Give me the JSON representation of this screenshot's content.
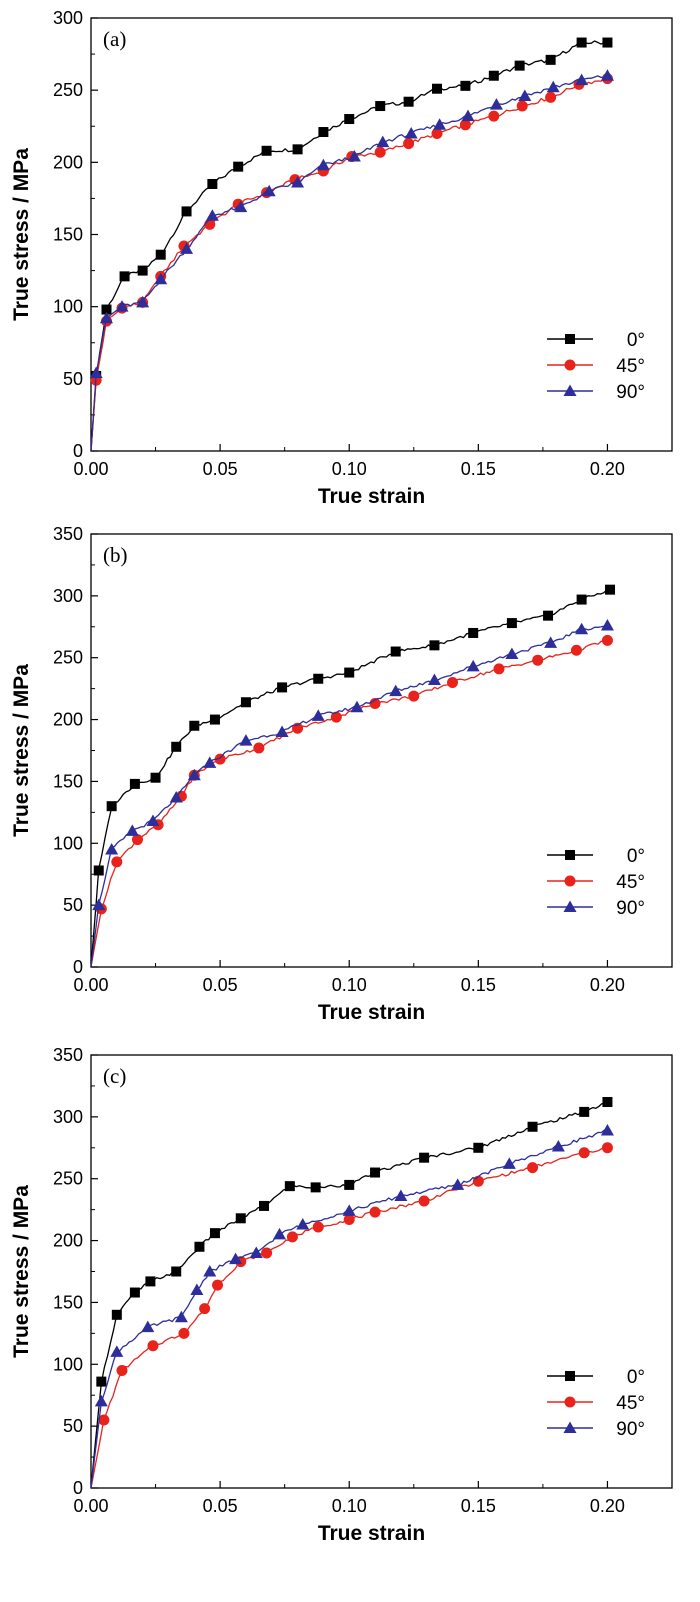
{
  "colors": {
    "series_0": "#000000",
    "series_45": "#e8231b",
    "series_90": "#2e2e9a"
  },
  "chart_data": [
    {
      "type": "line",
      "panel_label": "(a)",
      "xlabel": "True strain",
      "ylabel": "True stress / MPa",
      "xlim": [
        0,
        0.225
      ],
      "ylim": [
        0,
        300
      ],
      "xticks": [
        "0.00",
        "0.05",
        "0.10",
        "0.15",
        "0.20"
      ],
      "xtick_values": [
        0,
        0.05,
        0.1,
        0.15,
        0.2
      ],
      "yticks": [
        "0",
        "50",
        "100",
        "150",
        "200",
        "250",
        "300"
      ],
      "ytick_values": [
        0,
        50,
        100,
        150,
        200,
        250,
        300
      ],
      "legend_position": "bottom-right",
      "grid": false,
      "series": [
        {
          "name": "0°",
          "marker": "square",
          "color": "#000000",
          "x": [
            0,
            0.002,
            0.006,
            0.013,
            0.02,
            0.027,
            0.037,
            0.047,
            0.057,
            0.068,
            0.08,
            0.09,
            0.1,
            0.112,
            0.123,
            0.134,
            0.145,
            0.156,
            0.166,
            0.178,
            0.19,
            0.2
          ],
          "y": [
            0,
            52,
            98,
            121,
            125,
            136,
            166,
            185,
            197,
            208,
            209,
            221,
            230,
            239,
            242,
            251,
            253,
            260,
            267,
            271,
            283,
            283
          ]
        },
        {
          "name": "45°",
          "marker": "circle",
          "color": "#e8231b",
          "x": [
            0,
            0.002,
            0.006,
            0.012,
            0.02,
            0.027,
            0.036,
            0.046,
            0.057,
            0.068,
            0.079,
            0.09,
            0.101,
            0.112,
            0.123,
            0.134,
            0.145,
            0.156,
            0.167,
            0.178,
            0.189,
            0.2
          ],
          "y": [
            0,
            49,
            90,
            99,
            103,
            121,
            142,
            157,
            171,
            179,
            188,
            194,
            204,
            207,
            213,
            220,
            226,
            232,
            239,
            245,
            254,
            258
          ]
        },
        {
          "name": "90°",
          "marker": "triangle",
          "color": "#2e2e9a",
          "x": [
            0,
            0.002,
            0.006,
            0.012,
            0.02,
            0.027,
            0.037,
            0.047,
            0.058,
            0.069,
            0.08,
            0.09,
            0.102,
            0.113,
            0.124,
            0.135,
            0.146,
            0.157,
            0.168,
            0.179,
            0.19,
            0.2
          ],
          "y": [
            0,
            54,
            92,
            100,
            103,
            119,
            140,
            163,
            169,
            180,
            186,
            198,
            204,
            214,
            220,
            226,
            232,
            240,
            246,
            252,
            257,
            260
          ]
        }
      ]
    },
    {
      "type": "line",
      "panel_label": "(b)",
      "xlabel": "True strain",
      "ylabel": "True stress / MPa",
      "xlim": [
        0,
        0.225
      ],
      "ylim": [
        0,
        350
      ],
      "xticks": [
        "0.00",
        "0.05",
        "0.10",
        "0.15",
        "0.20"
      ],
      "xtick_values": [
        0,
        0.05,
        0.1,
        0.15,
        0.2
      ],
      "yticks": [
        "0",
        "50",
        "100",
        "150",
        "200",
        "250",
        "300",
        "350"
      ],
      "ytick_values": [
        0,
        50,
        100,
        150,
        200,
        250,
        300,
        350
      ],
      "legend_position": "bottom-right",
      "grid": false,
      "series": [
        {
          "name": "0°",
          "marker": "square",
          "color": "#000000",
          "x": [
            0,
            0.003,
            0.008,
            0.017,
            0.025,
            0.033,
            0.04,
            0.048,
            0.06,
            0.074,
            0.088,
            0.1,
            0.118,
            0.133,
            0.148,
            0.163,
            0.177,
            0.19,
            0.201
          ],
          "y": [
            0,
            78,
            130,
            148,
            153,
            178,
            195,
            200,
            214,
            226,
            233,
            238,
            255,
            260,
            270,
            278,
            284,
            297,
            305
          ]
        },
        {
          "name": "45°",
          "marker": "circle",
          "color": "#e8231b",
          "x": [
            0,
            0.004,
            0.01,
            0.018,
            0.026,
            0.035,
            0.04,
            0.05,
            0.065,
            0.08,
            0.095,
            0.11,
            0.125,
            0.14,
            0.158,
            0.173,
            0.188,
            0.2
          ],
          "y": [
            0,
            47,
            85,
            103,
            115,
            138,
            155,
            168,
            177,
            193,
            202,
            213,
            219,
            230,
            241,
            248,
            256,
            264
          ]
        },
        {
          "name": "90°",
          "marker": "triangle",
          "color": "#2e2e9a",
          "x": [
            0,
            0.003,
            0.008,
            0.016,
            0.024,
            0.033,
            0.04,
            0.046,
            0.06,
            0.074,
            0.088,
            0.103,
            0.118,
            0.133,
            0.148,
            0.163,
            0.178,
            0.19,
            0.2
          ],
          "y": [
            0,
            50,
            95,
            110,
            118,
            137,
            155,
            165,
            183,
            190,
            203,
            210,
            223,
            232,
            243,
            253,
            262,
            273,
            276
          ]
        }
      ]
    },
    {
      "type": "line",
      "panel_label": "(c)",
      "xlabel": "True strain",
      "ylabel": "True stress / MPa",
      "xlim": [
        0,
        0.225
      ],
      "ylim": [
        0,
        350
      ],
      "xticks": [
        "0.00",
        "0.05",
        "0.10",
        "0.15",
        "0.20"
      ],
      "xtick_values": [
        0,
        0.05,
        0.1,
        0.15,
        0.2
      ],
      "yticks": [
        "0",
        "50",
        "100",
        "150",
        "200",
        "250",
        "300",
        "350"
      ],
      "ytick_values": [
        0,
        50,
        100,
        150,
        200,
        250,
        300,
        350
      ],
      "legend_position": "bottom-right",
      "grid": false,
      "series": [
        {
          "name": "0°",
          "marker": "square",
          "color": "#000000",
          "x": [
            0,
            0.004,
            0.01,
            0.017,
            0.023,
            0.033,
            0.042,
            0.048,
            0.058,
            0.067,
            0.077,
            0.087,
            0.1,
            0.11,
            0.129,
            0.15,
            0.171,
            0.191,
            0.2
          ],
          "y": [
            0,
            86,
            140,
            158,
            167,
            175,
            195,
            206,
            218,
            228,
            244,
            243,
            245,
            255,
            267,
            275,
            292,
            304,
            312
          ]
        },
        {
          "name": "45°",
          "marker": "circle",
          "color": "#e8231b",
          "x": [
            0,
            0.005,
            0.012,
            0.024,
            0.036,
            0.044,
            0.049,
            0.058,
            0.068,
            0.078,
            0.088,
            0.1,
            0.11,
            0.129,
            0.15,
            0.171,
            0.191,
            0.2
          ],
          "y": [
            0,
            55,
            95,
            115,
            125,
            145,
            164,
            183,
            190,
            203,
            211,
            217,
            223,
            232,
            248,
            259,
            271,
            275
          ]
        },
        {
          "name": "90°",
          "marker": "triangle",
          "color": "#2e2e9a",
          "x": [
            0,
            0.004,
            0.01,
            0.022,
            0.035,
            0.041,
            0.046,
            0.056,
            0.064,
            0.073,
            0.082,
            0.1,
            0.12,
            0.142,
            0.162,
            0.181,
            0.2
          ],
          "y": [
            0,
            70,
            110,
            130,
            138,
            160,
            175,
            185,
            190,
            205,
            213,
            224,
            236,
            245,
            262,
            276,
            289
          ]
        }
      ]
    }
  ]
}
